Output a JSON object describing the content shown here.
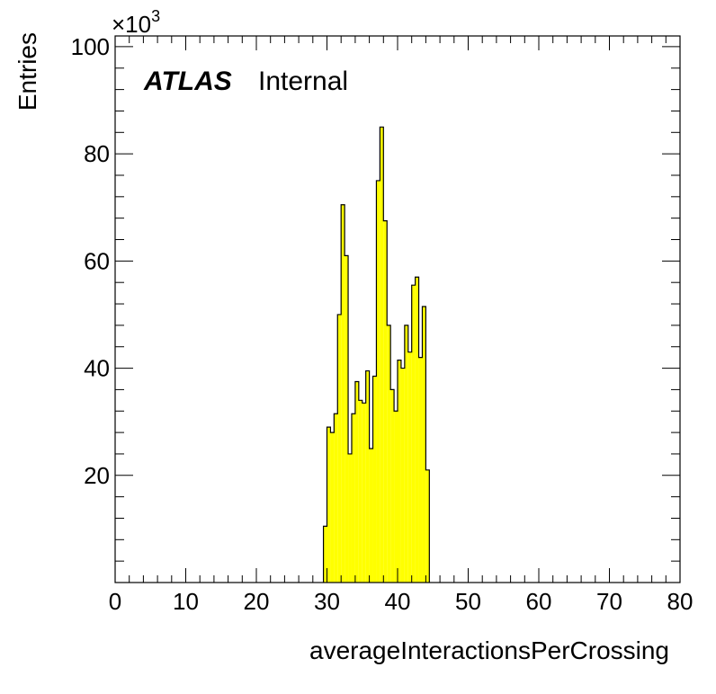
{
  "chart_data": {
    "type": "bar",
    "histogram": true,
    "xlabel": "averageInteractionsPerCrossing",
    "ylabel": "Entries",
    "xlim": [
      0,
      80
    ],
    "ylim": [
      0,
      102000
    ],
    "scale_label": "×10",
    "scale_exponent": "3",
    "x_tick_labels": [
      "0",
      "10",
      "20",
      "30",
      "40",
      "50",
      "60",
      "70",
      "80"
    ],
    "y_tick_labels": [
      "20",
      "40",
      "60",
      "80",
      "100"
    ],
    "y_tick_values": [
      20000,
      40000,
      60000,
      80000,
      100000
    ],
    "bin_width": 0.5,
    "bin_starts": [
      29.5,
      30.0,
      30.5,
      31.0,
      31.5,
      32.0,
      32.5,
      33.0,
      33.5,
      34.0,
      34.5,
      35.0,
      35.5,
      36.0,
      36.5,
      37.0,
      37.5,
      38.0,
      38.5,
      39.0,
      39.5,
      40.0,
      40.5,
      41.0,
      41.5,
      42.0,
      42.5,
      43.0,
      43.5,
      44.0
    ],
    "values": [
      10500,
      29000,
      28000,
      31500,
      50000,
      70500,
      61000,
      24000,
      31500,
      37500,
      34000,
      33500,
      39500,
      25000,
      38500,
      75000,
      85000,
      67500,
      48000,
      36000,
      32000,
      41500,
      40000,
      48000,
      43000,
      55500,
      57000,
      42000,
      51500,
      21000
    ],
    "fill_color": "#ffff00",
    "line_color": "#000000",
    "grid": false,
    "legend": "none"
  },
  "label": {
    "atlas": "ATLAS",
    "status": "Internal"
  }
}
